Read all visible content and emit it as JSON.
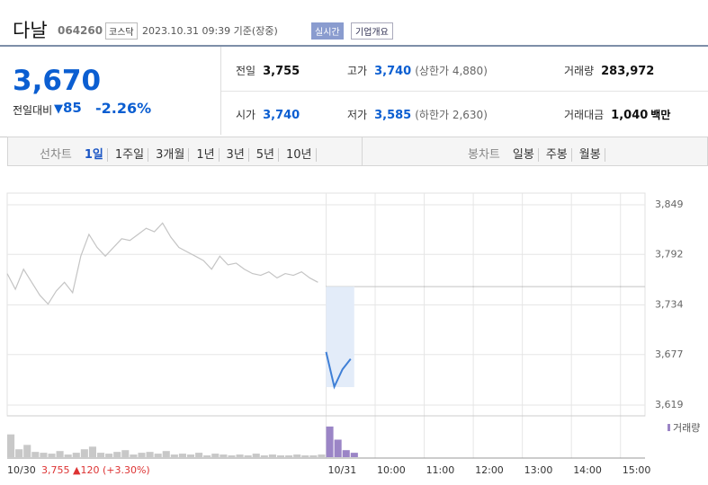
{
  "header": {
    "name": "다날",
    "code": "064260",
    "market": "코스닥",
    "time": "2023.10.31 09:39 기준(장중)",
    "realtime": "실시간",
    "company": "기업개요"
  },
  "price": {
    "now": "3,670",
    "change_label": "전일대비",
    "change": "85",
    "rate": "-2.26%"
  },
  "stats": [
    {
      "label": "전일",
      "value": "3,755"
    },
    {
      "label": "고가",
      "value": "3,740",
      "note": "(상한가 4,880)"
    },
    {
      "label": "거래량",
      "value": "283,972"
    },
    {
      "label": "시가",
      "value": "3,740"
    },
    {
      "label": "저가",
      "value": "3,585",
      "note": "(하한가 2,630)"
    },
    {
      "label": "거래대금",
      "value": "1,040",
      "unit": "백만"
    }
  ],
  "tabs": {
    "line_label": "선차트",
    "line": [
      "1일",
      "1주일",
      "3개월",
      "1년",
      "3년",
      "5년",
      "10년"
    ],
    "candle_label": "봉차트",
    "candle": [
      "일봉",
      "주봉",
      "월봉"
    ]
  },
  "footer": {
    "prev": "3,755",
    "change": "▲120",
    "rate": "(+3.30%)"
  },
  "chart_data": {
    "type": "line",
    "categories": [
      "10/30",
      null,
      null,
      null,
      null,
      null,
      null,
      null,
      null,
      null,
      null,
      null,
      null,
      null,
      null,
      null,
      null,
      null,
      null,
      null,
      null,
      null,
      null,
      null,
      null,
      null,
      null,
      null,
      null,
      null,
      null,
      null,
      null,
      null,
      null,
      null,
      null,
      null,
      null,
      "10/31",
      null,
      null,
      null,
      null,
      null,
      "10:00",
      null,
      null,
      null,
      null,
      null,
      "11:00",
      null,
      null,
      null,
      null,
      null,
      "12:00",
      null,
      null,
      null,
      null,
      null,
      "13:00",
      null,
      null,
      null,
      null,
      null,
      "14:00",
      null,
      null,
      null,
      null,
      null,
      "15:00",
      null,
      null
    ],
    "series": [
      {
        "name": "10/30",
        "color": "#c4c4c4",
        "values": [
          3770,
          3752,
          3775,
          3760,
          3745,
          3735,
          3750,
          3760,
          3748,
          3790,
          3815,
          3800,
          3790,
          3800,
          3810,
          3808,
          3815,
          3822,
          3818,
          3828,
          3812,
          3800,
          3795,
          3790,
          3785,
          3775,
          3790,
          3780,
          3782,
          3775,
          3770,
          3768,
          3772,
          3765,
          3770,
          3768,
          3772,
          3765,
          3760,
          null,
          null,
          null,
          null,
          null,
          null,
          null,
          null,
          null,
          null,
          null,
          null,
          null,
          null,
          null,
          null,
          null,
          null,
          null,
          null,
          null,
          null,
          null,
          null,
          null,
          null,
          null,
          null,
          null,
          null,
          null,
          null,
          null,
          null,
          null,
          null,
          null,
          null,
          null
        ]
      },
      {
        "name": "10/31",
        "color": "#3f7fd6",
        "values": [
          null,
          null,
          null,
          null,
          null,
          null,
          null,
          null,
          null,
          null,
          null,
          null,
          null,
          null,
          null,
          null,
          null,
          null,
          null,
          null,
          null,
          null,
          null,
          null,
          null,
          null,
          null,
          null,
          null,
          null,
          null,
          null,
          null,
          null,
          null,
          null,
          null,
          null,
          null,
          3680,
          3640,
          3660,
          3672,
          null,
          null,
          null,
          null,
          null,
          null,
          null,
          null,
          null,
          null,
          null,
          null,
          null,
          null,
          null,
          null,
          null,
          null,
          null,
          null,
          null,
          null,
          null,
          null,
          null,
          null,
          null,
          null,
          null,
          null,
          null,
          null,
          null,
          null,
          null
        ]
      }
    ],
    "reference": 3755,
    "ylim": [
      3619,
      3849
    ],
    "yticks": [
      {
        "value": 3619,
        "label": "3,619"
      },
      {
        "value": 3677,
        "label": "3,677"
      },
      {
        "value": 3734,
        "label": "3,734"
      },
      {
        "value": 3792,
        "label": "3,792"
      },
      {
        "value": 3849,
        "label": "3,849"
      }
    ],
    "volume": {
      "name": "거래량",
      "color": "#9b85c6",
      "prev_color": "#c8c8c8",
      "ylim": [
        0,
        40000
      ],
      "values": [
        26000,
        9000,
        14000,
        6000,
        5000,
        4000,
        7000,
        3000,
        5000,
        9000,
        12000,
        5000,
        4000,
        6000,
        8000,
        3000,
        5000,
        6000,
        4000,
        7000,
        3000,
        4000,
        3000,
        5000,
        2000,
        4000,
        3000,
        2000,
        3000,
        2000,
        4000,
        2000,
        3000,
        2000,
        2000,
        3000,
        2000,
        2000,
        3000,
        35000,
        20000,
        8000,
        5000,
        null,
        null,
        null,
        null,
        null,
        null,
        null,
        null,
        null,
        null,
        null,
        null,
        null,
        null,
        null,
        null,
        null,
        null,
        null,
        null,
        null,
        null,
        null,
        null,
        null,
        null,
        null,
        null,
        null,
        null,
        null,
        null,
        null,
        null,
        null
      ]
    },
    "grid": true
  }
}
